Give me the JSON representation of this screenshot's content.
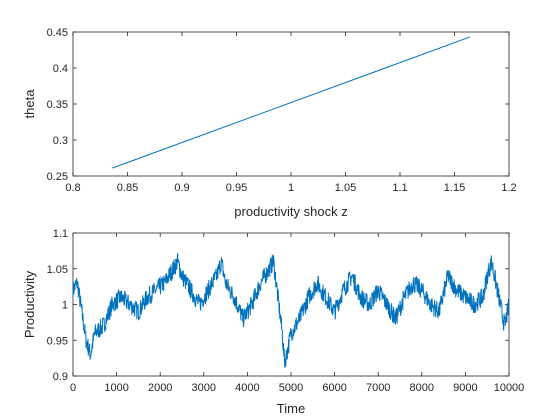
{
  "chart_data": [
    {
      "type": "line",
      "xlabel": "productivity shock z",
      "ylabel": "theta",
      "xlim": [
        0.8,
        1.2
      ],
      "ylim": [
        0.25,
        0.45
      ],
      "xticks": [
        0.8,
        0.85,
        0.9,
        0.95,
        1,
        1.05,
        1.1,
        1.15,
        1.2
      ],
      "yticks": [
        0.25,
        0.3,
        0.35,
        0.4,
        0.45
      ],
      "xtick_labels": [
        "0.8",
        "0.85",
        "0.9",
        "0.95",
        "1",
        "1.05",
        "1.1",
        "1.15",
        "1.2"
      ],
      "ytick_labels": [
        "0.25",
        "0.3",
        "0.35",
        "0.4",
        "0.45"
      ],
      "grid": false,
      "color": "#0072bd",
      "series": [
        {
          "x": [
            0.836,
            1.164
          ],
          "y": [
            0.261,
            0.443
          ]
        }
      ]
    },
    {
      "type": "line",
      "xlabel": "Time",
      "ylabel": "Productivity",
      "xlim": [
        0,
        10000
      ],
      "ylim": [
        0.9,
        1.1
      ],
      "xticks": [
        0,
        1000,
        2000,
        3000,
        4000,
        5000,
        6000,
        7000,
        8000,
        9000,
        10000
      ],
      "yticks": [
        0.9,
        0.95,
        1,
        1.05,
        1.1
      ],
      "xtick_labels": [
        "0",
        "1000",
        "2000",
        "3000",
        "4000",
        "5000",
        "6000",
        "7000",
        "8000",
        "9000",
        "10000"
      ],
      "ytick_labels": [
        "0.9",
        "0.95",
        "1",
        "1.05",
        "1.1"
      ],
      "grid": false,
      "color": "#0072bd",
      "series": [
        {
          "x": [
            0,
            100,
            200,
            300,
            400,
            500,
            700,
            900,
            1100,
            1300,
            1500,
            1700,
            1900,
            2100,
            2300,
            2400,
            2500,
            2700,
            2900,
            3100,
            3300,
            3400,
            3500,
            3700,
            3900,
            4100,
            4300,
            4500,
            4600,
            4700,
            4800,
            4850,
            4900,
            5000,
            5200,
            5400,
            5600,
            5800,
            6000,
            6200,
            6400,
            6600,
            6800,
            7000,
            7200,
            7400,
            7600,
            7800,
            8000,
            8200,
            8400,
            8600,
            8800,
            9000,
            9200,
            9400,
            9500,
            9600,
            9700,
            9800,
            9900,
            10000
          ],
          "y": [
            1.02,
            1.03,
            0.99,
            0.95,
            0.93,
            0.96,
            0.97,
            1.0,
            1.01,
            1.0,
            0.99,
            1.01,
            1.02,
            1.03,
            1.05,
            1.06,
            1.04,
            1.02,
            1.0,
            1.02,
            1.04,
            1.06,
            1.03,
            1.01,
            0.98,
            1.0,
            1.03,
            1.05,
            1.06,
            1.01,
            0.96,
            0.92,
            0.93,
            0.96,
            0.98,
            1.01,
            1.03,
            1.01,
            0.99,
            1.02,
            1.04,
            1.01,
            1.0,
            1.02,
            1.0,
            0.98,
            1.01,
            1.03,
            1.02,
            1.0,
            0.99,
            1.04,
            1.02,
            1.01,
            1.0,
            1.01,
            1.04,
            1.06,
            1.03,
            1.0,
            0.97,
            1.0
          ]
        }
      ]
    }
  ]
}
